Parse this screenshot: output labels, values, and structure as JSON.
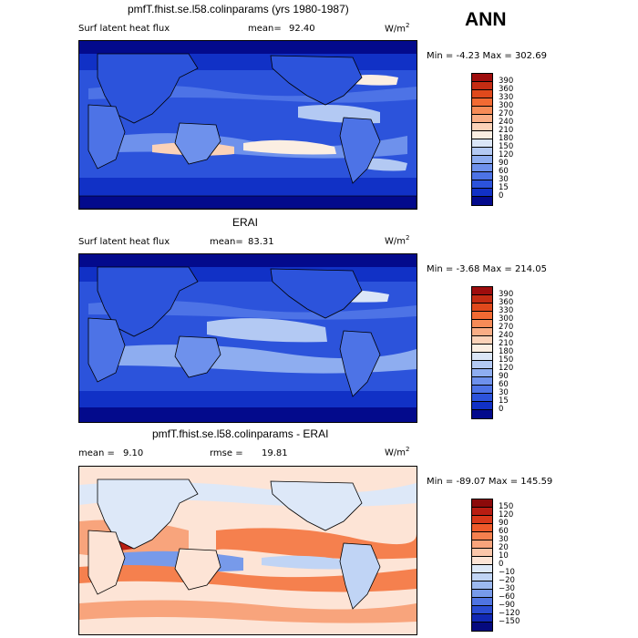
{
  "season": "ANN",
  "panels": [
    {
      "title": "pmfT.fhist.se.l58.colinparams (yrs 1980-1987)",
      "left_label": "Surf latent heat flux",
      "stat_label": "mean=",
      "stat_value": "92.40",
      "stat2_label": "",
      "stat2_value": "",
      "units": "W/m",
      "units_sup": "2",
      "minmax": "Min =   -4.23 Max =  302.69",
      "levels": [
        "390",
        "360",
        "330",
        "300",
        "270",
        "240",
        "210",
        "180",
        "150",
        "120",
        "90",
        "60",
        "30",
        "15",
        "0"
      ],
      "colors": [
        "#9e0d0d",
        "#c42c13",
        "#e0491c",
        "#f26a33",
        "#f68b57",
        "#f9ad85",
        "#fbd2b8",
        "#fbeee2",
        "#dbe6f7",
        "#b3c9f3",
        "#8eadf0",
        "#6e91ec",
        "#4d73e6",
        "#2c53db",
        "#1131c6",
        "#030a8c"
      ],
      "map_style": "model"
    },
    {
      "title": "ERAI",
      "left_label": "Surf latent heat flux",
      "stat_label": "mean=",
      "stat_value": "83.31",
      "stat2_label": "",
      "stat2_value": "",
      "units": "W/m",
      "units_sup": "2",
      "minmax": "Min =   -3.68 Max =  214.05",
      "levels": [
        "390",
        "360",
        "330",
        "300",
        "270",
        "240",
        "210",
        "180",
        "150",
        "120",
        "90",
        "60",
        "30",
        "15",
        "0"
      ],
      "colors": [
        "#9e0d0d",
        "#c42c13",
        "#e0491c",
        "#f26a33",
        "#f68b57",
        "#f9ad85",
        "#fbd2b8",
        "#fbeee2",
        "#dbe6f7",
        "#b3c9f3",
        "#8eadf0",
        "#6e91ec",
        "#4d73e6",
        "#2c53db",
        "#1131c6",
        "#030a8c"
      ],
      "map_style": "obs"
    },
    {
      "title": "pmfT.fhist.se.l58.colinparams - ERAI",
      "left_label": "",
      "stat_label": "mean =",
      "stat_value": "9.10",
      "stat2_label": "rmse =",
      "stat2_value": "19.81",
      "units": "W/m",
      "units_sup": "2",
      "minmax": "Min =  -89.07 Max =  145.59",
      "levels": [
        "150",
        "120",
        "90",
        "60",
        "30",
        "20",
        "10",
        "0",
        "−10",
        "−20",
        "−30",
        "−60",
        "−90",
        "−120",
        "−150"
      ],
      "colors": [
        "#8c0a0a",
        "#b81d12",
        "#d8381a",
        "#ee5a2a",
        "#f5804e",
        "#f8a47c",
        "#fbc6aa",
        "#fde4d6",
        "#dde8f8",
        "#c0d4f5",
        "#9cb9f0",
        "#779aea",
        "#4f74e2",
        "#2a4cd2",
        "#1128b4",
        "#050a7e"
      ],
      "map_style": "diff"
    }
  ]
}
